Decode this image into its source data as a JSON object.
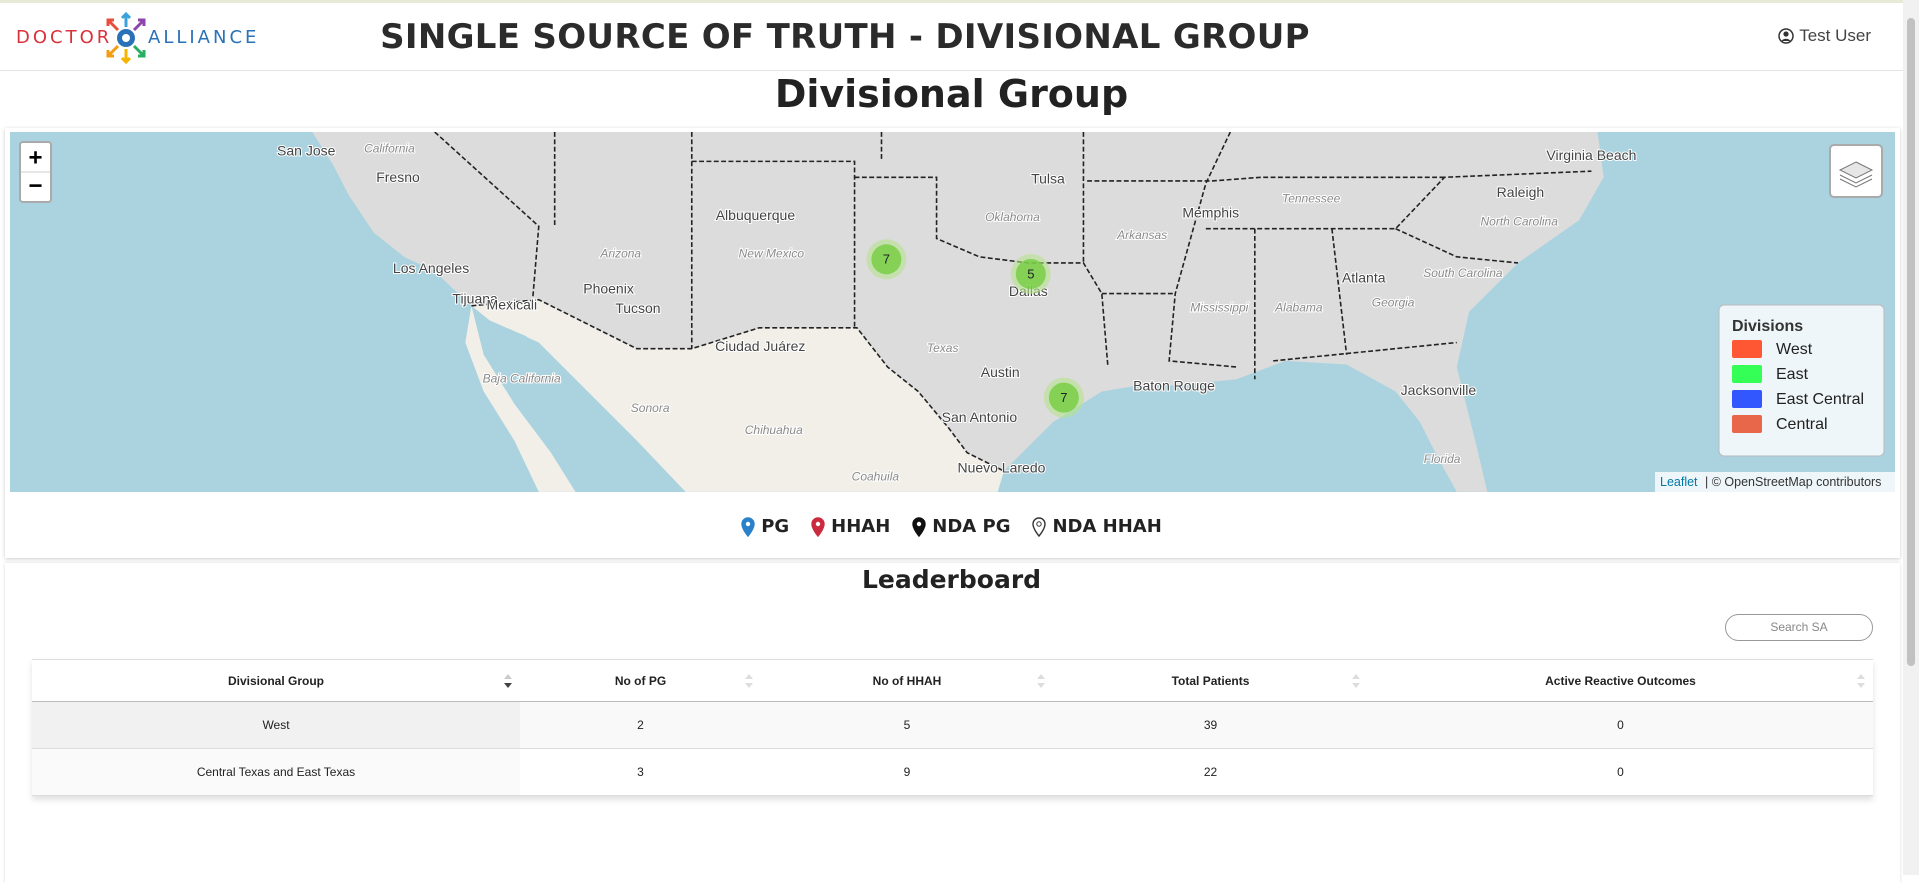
{
  "header": {
    "logo_left": "DOCTOR",
    "logo_right": "ALLIANCE",
    "title": "SINGLE SOURCE OF TRUTH - DIVISIONAL GROUP",
    "user": "Test User"
  },
  "page_title": "Divisional Group",
  "map": {
    "zoom_in": "+",
    "zoom_out": "−",
    "clusters": [
      7,
      5,
      7
    ],
    "labels": [
      "San Jose",
      "California",
      "Fresno",
      "Los Angeles",
      "Tijuana",
      "Mexicali",
      "Phoenix",
      "Arizona",
      "Tucson",
      "Albuquerque",
      "New Mexico",
      "Ciudad Juárez",
      "Baja California",
      "Sonora",
      "Chihuahua",
      "Coahuila",
      "Texas",
      "Austin",
      "San Antonio",
      "Nuevo Laredo",
      "Dallas",
      "Oklahoma",
      "Tulsa",
      "Arkansas",
      "Memphis",
      "Tennessee",
      "Mississippi",
      "Alabama",
      "Atlanta",
      "Georgia",
      "Baton Rouge",
      "Jacksonville",
      "Florida",
      "Raleigh",
      "North Carolina",
      "South Carolina",
      "Virginia Beach"
    ],
    "legend": {
      "title": "Divisions",
      "items": [
        {
          "name": "West",
          "color": "#ff5733"
        },
        {
          "name": "East",
          "color": "#33ff57"
        },
        {
          "name": "East Central",
          "color": "#3357ff"
        },
        {
          "name": "Central",
          "color": "#e8674a"
        }
      ]
    },
    "attribution": {
      "link": "Leaflet",
      "text": "| © OpenStreetMap contributors"
    }
  },
  "marker_legend": [
    {
      "name": "PG",
      "color": "#2a81cb"
    },
    {
      "name": "HHAH",
      "color": "#cb2b3e"
    },
    {
      "name": "NDA PG",
      "color": "#111111"
    },
    {
      "name": "NDA HHAH",
      "color": "none"
    }
  ],
  "leaderboard": {
    "title": "Leaderboard",
    "search_placeholder": "Search SA",
    "columns": [
      "Divisional Group",
      "No of PG",
      "No of HHAH",
      "Total Patients",
      "Active Reactive Outcomes"
    ],
    "rows": [
      [
        "West",
        2,
        5,
        39,
        0
      ],
      [
        "Central Texas and East Texas",
        3,
        9,
        22,
        0
      ]
    ]
  }
}
